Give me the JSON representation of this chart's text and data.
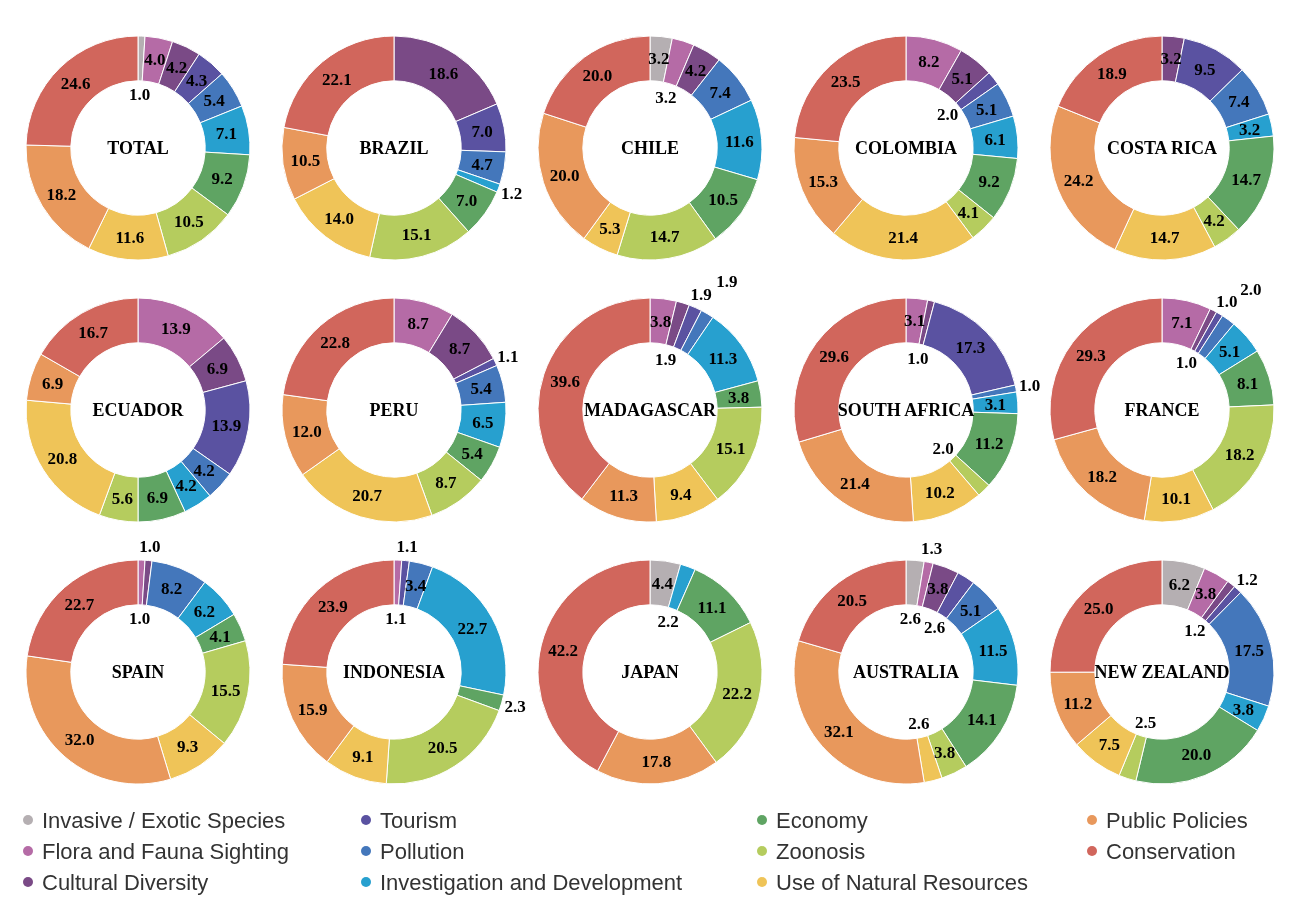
{
  "chart_data": [
    {
      "type": "donut",
      "title": "TOTAL",
      "categories": [
        "Invasive / Exotic Species",
        "Flora and Fauna Sighting",
        "Cultural Diversity",
        "Tourism",
        "Pollution",
        "Investigation and Development",
        "Economy",
        "Zoonosis",
        "Use of Natural Resources",
        "Public Policies",
        "Conservation"
      ],
      "values": [
        1.0,
        4.0,
        4.2,
        4.3,
        5.4,
        7.1,
        9.2,
        10.5,
        11.6,
        18.2,
        24.6
      ],
      "value_labels": [
        "1.0",
        "4.0",
        "4.2",
        "4.3",
        "5.4",
        "7.1",
        "9.2",
        "10.5",
        "11.6",
        "18.2",
        "24.6"
      ],
      "colors": [
        "#b5afb2",
        "#b56ba6",
        "#7a4a86",
        "#5a52a1",
        "#4477bb",
        "#27a0cf",
        "#5fa463",
        "#b5cc5e",
        "#efc458",
        "#e8985c",
        "#d1665c"
      ],
      "legend": "bottom"
    },
    {
      "type": "donut",
      "title": "BRAZIL",
      "values": [
        null,
        null,
        18.6,
        7.0,
        4.7,
        1.2,
        7.0,
        15.1,
        14.0,
        10.5,
        22.1
      ],
      "value_labels": [
        null,
        null,
        "18.6",
        "7.0",
        "4.7",
        "1.2",
        "7.0",
        "15.1",
        "14.0",
        "10.5",
        "22.1"
      ],
      "colors": [
        null,
        null,
        "#7a4a86",
        "#5a52a1",
        "#4477bb",
        "#27a0cf",
        "#5fa463",
        "#b5cc5e",
        "#efc458",
        "#e8985c",
        "#d1665c"
      ]
    },
    {
      "type": "donut",
      "title": "CHILE",
      "values": [
        3.2,
        3.2,
        4.2,
        null,
        7.4,
        11.6,
        10.5,
        14.7,
        5.3,
        20.0,
        20.0
      ],
      "value_labels": [
        "3.2",
        "3.2",
        "4.2",
        null,
        "7.4",
        "11.6",
        "10.5",
        "14.7",
        "5.3",
        "20.0",
        "20.0"
      ],
      "colors": [
        "#b5afb2",
        "#b56ba6",
        "#7a4a86",
        null,
        "#4477bb",
        "#27a0cf",
        "#5fa463",
        "#b5cc5e",
        "#efc458",
        "#e8985c",
        "#d1665c"
      ]
    },
    {
      "type": "donut",
      "title": "COLOMBIA",
      "values": [
        null,
        8.2,
        5.1,
        2.0,
        5.1,
        6.1,
        9.2,
        4.1,
        21.4,
        15.3,
        23.5
      ],
      "value_labels": [
        null,
        "8.2",
        "5.1",
        "2.0",
        "5.1",
        "6.1",
        "9.2",
        "4.1",
        "21.4",
        "15.3",
        "23.5"
      ],
      "colors": [
        null,
        "#b56ba6",
        "#7a4a86",
        "#5a52a1",
        "#4477bb",
        "#27a0cf",
        "#5fa463",
        "#b5cc5e",
        "#efc458",
        "#e8985c",
        "#d1665c"
      ]
    },
    {
      "type": "donut",
      "title": "COSTA RICA",
      "values": [
        null,
        null,
        3.2,
        9.5,
        7.4,
        3.2,
        14.7,
        4.2,
        14.7,
        24.2,
        18.9
      ],
      "value_labels": [
        null,
        null,
        "3.2",
        "9.5",
        "7.4",
        "3.2",
        "14.7",
        "4.2",
        "14.7",
        "24.2",
        "18.9"
      ],
      "colors": [
        null,
        null,
        "#7a4a86",
        "#5a52a1",
        "#4477bb",
        "#27a0cf",
        "#5fa463",
        "#b5cc5e",
        "#efc458",
        "#e8985c",
        "#d1665c"
      ]
    },
    {
      "type": "donut",
      "title": "ECUADOR",
      "values": [
        null,
        13.9,
        6.9,
        13.9,
        4.2,
        4.2,
        6.9,
        5.6,
        20.8,
        6.9,
        16.7
      ],
      "value_labels": [
        null,
        "13.9",
        "6.9",
        "13.9",
        "4.2",
        "4.2",
        "6.9",
        "5.6",
        "20.8",
        "6.9",
        "16.7"
      ],
      "colors": [
        null,
        "#b56ba6",
        "#7a4a86",
        "#5a52a1",
        "#4477bb",
        "#27a0cf",
        "#5fa463",
        "#b5cc5e",
        "#efc458",
        "#e8985c",
        "#d1665c"
      ]
    },
    {
      "type": "donut",
      "title": "PERU",
      "values": [
        null,
        8.7,
        8.7,
        1.1,
        5.4,
        6.5,
        5.4,
        8.7,
        20.7,
        12.0,
        22.8
      ],
      "value_labels": [
        null,
        "8.7",
        "8.7",
        "1.1",
        "5.4",
        "6.5",
        "5.4",
        "8.7",
        "20.7",
        "12.0",
        "22.8"
      ],
      "colors": [
        null,
        "#b56ba6",
        "#7a4a86",
        "#5a52a1",
        "#4477bb",
        "#27a0cf",
        "#5fa463",
        "#b5cc5e",
        "#efc458",
        "#e8985c",
        "#d1665c"
      ]
    },
    {
      "type": "donut",
      "title": "MADAGASCAR",
      "values": [
        null,
        3.8,
        1.9,
        1.9,
        1.9,
        11.3,
        3.8,
        15.1,
        9.4,
        11.3,
        39.6
      ],
      "value_labels": [
        null,
        "3.8",
        "1.9",
        "1.9",
        "1.9",
        "11.3",
        "3.8",
        "15.1",
        "9.4",
        "11.3",
        "39.6"
      ],
      "colors": [
        null,
        "#b56ba6",
        "#7a4a86",
        "#5a52a1",
        "#4477bb",
        "#27a0cf",
        "#5fa463",
        "#b5cc5e",
        "#efc458",
        "#e8985c",
        "#d1665c"
      ]
    },
    {
      "type": "donut",
      "title": "SOUTH AFRICA",
      "values": [
        null,
        3.1,
        1.0,
        17.3,
        1.0,
        3.1,
        11.2,
        2.0,
        10.2,
        21.4,
        29.6
      ],
      "value_labels": [
        null,
        "3.1",
        "1.0",
        "17.3",
        "1.0",
        "3.1",
        "11.2",
        "2.0",
        "10.2",
        "21.4",
        "29.6"
      ],
      "colors": [
        null,
        "#b56ba6",
        "#7a4a86",
        "#5a52a1",
        "#4477bb",
        "#27a0cf",
        "#5fa463",
        "#b5cc5e",
        "#efc458",
        "#e8985c",
        "#d1665c"
      ]
    },
    {
      "type": "donut",
      "title": "FRANCE",
      "values": [
        null,
        7.1,
        1.0,
        1.0,
        2.0,
        5.1,
        8.1,
        18.2,
        10.1,
        18.2,
        29.3
      ],
      "value_labels": [
        null,
        "7.1",
        "1.0",
        "1.0",
        "2.0",
        "5.1",
        "8.1",
        "18.2",
        "10.1",
        "18.2",
        "29.3"
      ],
      "colors": [
        null,
        "#b56ba6",
        "#7a4a86",
        "#5a52a1",
        "#4477bb",
        "#27a0cf",
        "#5fa463",
        "#b5cc5e",
        "#efc458",
        "#e8985c",
        "#d1665c"
      ]
    },
    {
      "type": "donut",
      "title": "SPAIN",
      "values": [
        null,
        1.0,
        1.0,
        null,
        8.2,
        6.2,
        4.1,
        15.5,
        9.3,
        32.0,
        22.7
      ],
      "value_labels": [
        null,
        "1.0",
        "1.0",
        null,
        "8.2",
        "6.2",
        "4.1",
        "15.5",
        "9.3",
        "32.0",
        "22.7"
      ],
      "colors": [
        null,
        "#b56ba6",
        "#7a4a86",
        null,
        "#4477bb",
        "#27a0cf",
        "#5fa463",
        "#b5cc5e",
        "#efc458",
        "#e8985c",
        "#d1665c"
      ]
    },
    {
      "type": "donut",
      "title": "INDONESIA",
      "values": [
        null,
        1.1,
        null,
        1.1,
        3.4,
        22.7,
        2.3,
        20.5,
        9.1,
        15.9,
        23.9
      ],
      "value_labels": [
        null,
        "1.1",
        null,
        "1.1",
        "3.4",
        "22.7",
        "2.3",
        "20.5",
        "9.1",
        "15.9",
        "23.9"
      ],
      "colors": [
        null,
        "#b56ba6",
        null,
        "#5a52a1",
        "#4477bb",
        "#27a0cf",
        "#5fa463",
        "#b5cc5e",
        "#efc458",
        "#e8985c",
        "#d1665c"
      ]
    },
    {
      "type": "donut",
      "title": "JAPAN",
      "values": [
        4.4,
        null,
        null,
        null,
        null,
        2.2,
        11.1,
        22.2,
        null,
        17.8,
        42.2
      ],
      "value_labels": [
        "4.4",
        null,
        null,
        null,
        null,
        "2.2",
        "11.1",
        "22.2",
        null,
        "17.8",
        "42.2"
      ],
      "colors": [
        "#b5afb2",
        null,
        null,
        null,
        null,
        "#27a0cf",
        "#5fa463",
        "#b5cc5e",
        null,
        "#e8985c",
        "#d1665c"
      ]
    },
    {
      "type": "donut",
      "title": "AUSTRALIA",
      "values": [
        2.6,
        1.3,
        3.8,
        2.6,
        5.1,
        11.5,
        14.1,
        3.8,
        2.6,
        32.1,
        20.5
      ],
      "value_labels": [
        "2.6",
        "1.3",
        "3.8",
        "2.6",
        "5.1",
        "11.5",
        "14.1",
        "3.8",
        "2.6",
        "32.1",
        "20.5"
      ],
      "colors": [
        "#b5afb2",
        "#b56ba6",
        "#7a4a86",
        "#5a52a1",
        "#4477bb",
        "#27a0cf",
        "#5fa463",
        "#b5cc5e",
        "#efc458",
        "#e8985c",
        "#d1665c"
      ]
    },
    {
      "type": "donut",
      "title": "NEW ZEALAND",
      "values": [
        6.2,
        3.8,
        1.2,
        1.2,
        17.5,
        3.8,
        20.0,
        2.5,
        7.5,
        11.2,
        25.0
      ],
      "value_labels": [
        "6.2",
        "3.8",
        "1.2",
        "1.2",
        "17.5",
        "3.8",
        "20.0",
        "2.5",
        "7.5",
        "11.2",
        "25.0"
      ],
      "colors": [
        "#b5afb2",
        "#b56ba6",
        "#7a4a86",
        "#5a52a1",
        "#4477bb",
        "#27a0cf",
        "#5fa463",
        "#b5cc5e",
        "#efc458",
        "#e8985c",
        "#d1665c"
      ]
    }
  ]
}
